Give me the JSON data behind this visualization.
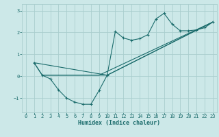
{
  "xlabel": "Humidex (Indice chaleur)",
  "bg_color": "#cce8e8",
  "grid_color": "#aacece",
  "line_color": "#1a6b6b",
  "xlim": [
    -0.5,
    23.5
  ],
  "ylim": [
    -1.65,
    3.3
  ],
  "yticks": [
    -1,
    0,
    1,
    2,
    3
  ],
  "xticks": [
    0,
    1,
    2,
    3,
    4,
    5,
    6,
    7,
    8,
    9,
    10,
    11,
    12,
    13,
    14,
    15,
    16,
    17,
    18,
    19,
    20,
    21,
    22,
    23
  ],
  "zigzag_x": [
    1,
    2,
    3,
    4,
    5,
    6,
    7,
    8,
    9,
    10,
    11,
    12,
    13,
    14,
    15,
    16,
    17,
    18,
    19,
    20,
    21,
    22,
    23
  ],
  "zigzag_y": [
    0.62,
    0.05,
    -0.12,
    -0.62,
    -1.0,
    -1.18,
    -1.28,
    -1.28,
    -0.65,
    0.05,
    2.05,
    1.75,
    1.65,
    1.72,
    1.9,
    2.62,
    2.88,
    2.38,
    2.08,
    2.08,
    2.12,
    2.22,
    2.48
  ],
  "line2_x": [
    1,
    2,
    9,
    23
  ],
  "line2_y": [
    0.62,
    0.05,
    0.05,
    2.48
  ],
  "line3_x": [
    1,
    10,
    23
  ],
  "line3_y": [
    0.62,
    0.05,
    2.48
  ],
  "line4_x": [
    2,
    10,
    23
  ],
  "line4_y": [
    0.05,
    0.05,
    2.48
  ]
}
